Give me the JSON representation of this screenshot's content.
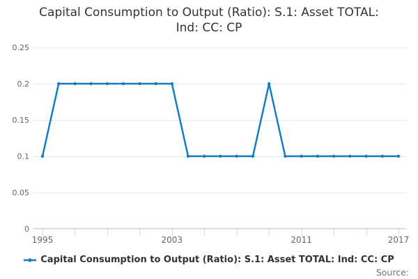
{
  "title": {
    "full": "Capital Consumption to Output (Ratio): S.1: Asset TOTAL: Ind: CC: CP",
    "lines": [
      "Capital Consumption to Output (Ratio): S.1: Asset TOTAL:",
      "Ind: CC: CP"
    ]
  },
  "legend": {
    "label": "Capital Consumption to Output (Ratio): S.1: Asset TOTAL: Ind: CC: CP",
    "marker": "line-with-dot-icon"
  },
  "footer": {
    "source_label": "Source:"
  },
  "colors": {
    "series_line": "#127dc2",
    "grid_line": "#e6e6e6",
    "axis_line": "#ccd6eb",
    "title_text": "#333333",
    "tick_label_text": "#666666",
    "legend_text": "#333333",
    "source_text": "#707070",
    "background": "#ffffff"
  },
  "chart_data": {
    "type": "line",
    "title": "Capital Consumption to Output (Ratio): S.1: Asset TOTAL: Ind: CC: CP",
    "x": [
      1995,
      1996,
      1997,
      1998,
      1999,
      2000,
      2001,
      2002,
      2003,
      2004,
      2005,
      2006,
      2007,
      2008,
      2009,
      2010,
      2011,
      2012,
      2013,
      2014,
      2015,
      2016,
      2017
    ],
    "series": [
      {
        "name": "Capital Consumption to Output (Ratio): S.1: Asset TOTAL: Ind: CC: CP",
        "values": [
          0.1,
          0.2,
          0.2,
          0.2,
          0.2,
          0.2,
          0.2,
          0.2,
          0.2,
          0.1,
          0.1,
          0.1,
          0.1,
          0.1,
          0.2,
          0.1,
          0.1,
          0.1,
          0.1,
          0.1,
          0.1,
          0.1,
          0.1
        ]
      }
    ],
    "xlabel": "",
    "ylabel": "",
    "xlim": [
      1995,
      2017
    ],
    "ylim": [
      0,
      0.25
    ],
    "yticks": [
      0,
      0.05,
      0.1,
      0.15,
      0.2,
      0.25
    ],
    "ytick_labels": [
      "0",
      "0.05",
      "0.1",
      "0.15",
      "0.2",
      "0.25"
    ],
    "xticks": [
      1995,
      1997,
      1999,
      2001,
      2003,
      2005,
      2007,
      2009,
      2011,
      2013,
      2015,
      2017
    ],
    "labeled_xticks": [
      1995,
      2003,
      2011,
      2017
    ],
    "grid": true,
    "markers": true,
    "legend_position": "bottom"
  }
}
